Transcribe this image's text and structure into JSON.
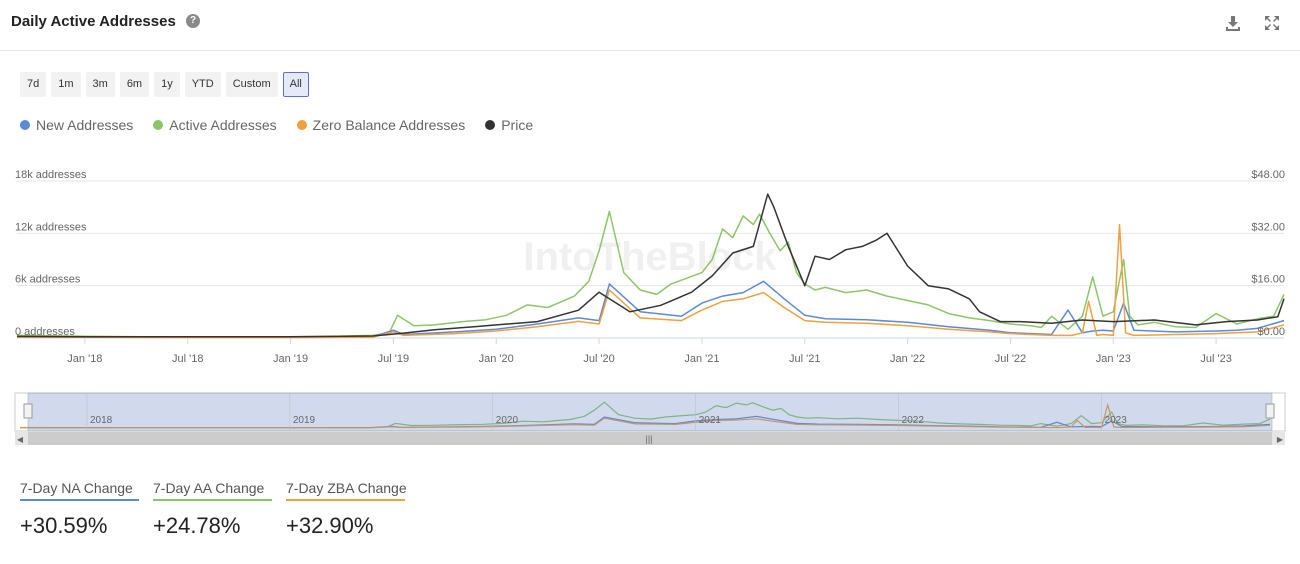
{
  "header": {
    "title": "Daily Active Addresses",
    "help_icon": "question-circle-icon",
    "download_icon": "download-icon",
    "expand_icon": "expand-icon"
  },
  "range_buttons": [
    {
      "label": "7d",
      "active": false
    },
    {
      "label": "1m",
      "active": false
    },
    {
      "label": "3m",
      "active": false
    },
    {
      "label": "6m",
      "active": false
    },
    {
      "label": "1y",
      "active": false
    },
    {
      "label": "YTD",
      "active": false
    },
    {
      "label": "Custom",
      "active": false
    },
    {
      "label": "All",
      "active": true
    }
  ],
  "legend": [
    {
      "label": "New Addresses",
      "color": "#5b8ad9"
    },
    {
      "label": "Active Addresses",
      "color": "#8bc766"
    },
    {
      "label": "Zero Balance Addresses",
      "color": "#f0a03c"
    },
    {
      "label": "Price",
      "color": "#333333"
    }
  ],
  "watermark": "IntoTheBlock",
  "chart_data": {
    "type": "line",
    "title": "",
    "left_axis": {
      "ticks": [
        "0 addresses",
        "6k addresses",
        "12k addresses",
        "18k addresses"
      ],
      "values": [
        0,
        6000,
        12000,
        18000
      ],
      "range": [
        0,
        18000
      ]
    },
    "right_axis": {
      "ticks": [
        "$0.00",
        "$16.00",
        "$32.00",
        "$48.00"
      ],
      "values": [
        0,
        16,
        32,
        48
      ],
      "range": [
        0,
        48
      ]
    },
    "x_range": [
      2017.67,
      2023.83
    ],
    "x_ticks": [
      {
        "label": "Jan '18",
        "value": 2018.0
      },
      {
        "label": "Jul '18",
        "value": 2018.5
      },
      {
        "label": "Jan '19",
        "value": 2019.0
      },
      {
        "label": "Jul '19",
        "value": 2019.5
      },
      {
        "label": "Jan '20",
        "value": 2020.0
      },
      {
        "label": "Jul '20",
        "value": 2020.5
      },
      {
        "label": "Jan '21",
        "value": 2021.0
      },
      {
        "label": "Jul '21",
        "value": 2021.5
      },
      {
        "label": "Jan '22",
        "value": 2022.0
      },
      {
        "label": "Jul '22",
        "value": 2022.5
      },
      {
        "label": "Jan '23",
        "value": 2023.0
      },
      {
        "label": "Jul '23",
        "value": 2023.5
      }
    ],
    "grid": true,
    "series": [
      {
        "name": "Active Addresses",
        "axis": "left",
        "color": "#8bc766",
        "x": [
          2017.67,
          2017.8,
          2018.0,
          2018.3,
          2018.6,
          2018.9,
          2019.2,
          2019.4,
          2019.48,
          2019.52,
          2019.6,
          2019.7,
          2019.85,
          2019.95,
          2020.05,
          2020.15,
          2020.25,
          2020.32,
          2020.38,
          2020.45,
          2020.5,
          2020.55,
          2020.62,
          2020.7,
          2020.78,
          2020.85,
          2020.92,
          2021.0,
          2021.05,
          2021.1,
          2021.15,
          2021.2,
          2021.25,
          2021.28,
          2021.33,
          2021.38,
          2021.42,
          2021.46,
          2021.5,
          2021.55,
          2021.6,
          2021.7,
          2021.8,
          2021.9,
          2022.0,
          2022.1,
          2022.2,
          2022.3,
          2022.4,
          2022.5,
          2022.6,
          2022.65,
          2022.7,
          2022.78,
          2022.85,
          2022.9,
          2022.95,
          2023.0,
          2023.05,
          2023.08,
          2023.12,
          2023.2,
          2023.3,
          2023.4,
          2023.5,
          2023.6,
          2023.7,
          2023.78,
          2023.83
        ],
        "y": [
          300,
          250,
          200,
          150,
          120,
          120,
          180,
          300,
          600,
          2600,
          1400,
          1500,
          1900,
          2100,
          2600,
          3800,
          3500,
          4200,
          4800,
          6500,
          10000,
          14500,
          7500,
          5500,
          5000,
          6200,
          6800,
          7500,
          9000,
          12500,
          11500,
          14000,
          13000,
          14200,
          12000,
          10000,
          11000,
          7500,
          6200,
          5500,
          5800,
          5200,
          5500,
          4800,
          4300,
          3800,
          2800,
          2300,
          2000,
          1600,
          1400,
          1200,
          2500,
          1000,
          2500,
          7000,
          2500,
          3000,
          9000,
          2500,
          1500,
          1800,
          1300,
          1200,
          2800,
          1600,
          2200,
          2500,
          5000
        ]
      },
      {
        "name": "New Addresses",
        "axis": "left",
        "color": "#5b8ad9",
        "x": [
          2017.67,
          2018.0,
          2018.5,
          2019.0,
          2019.4,
          2019.5,
          2019.55,
          2019.8,
          2020.0,
          2020.2,
          2020.4,
          2020.5,
          2020.55,
          2020.7,
          2020.9,
          2021.0,
          2021.1,
          2021.2,
          2021.3,
          2021.4,
          2021.5,
          2021.6,
          2021.8,
          2022.0,
          2022.2,
          2022.4,
          2022.5,
          2022.6,
          2022.7,
          2022.78,
          2022.85,
          2022.9,
          2022.95,
          2023.0,
          2023.05,
          2023.1,
          2023.3,
          2023.5,
          2023.6,
          2023.7,
          2023.83
        ],
        "y": [
          150,
          100,
          80,
          80,
          150,
          900,
          400,
          700,
          1000,
          1600,
          2300,
          2000,
          6200,
          3000,
          2500,
          4000,
          4800,
          5200,
          6500,
          4500,
          2600,
          2200,
          2100,
          1800,
          1300,
          900,
          600,
          500,
          400,
          3200,
          600,
          800,
          900,
          800,
          4000,
          900,
          700,
          800,
          900,
          1100,
          2000
        ]
      },
      {
        "name": "Zero Balance Addresses",
        "axis": "left",
        "color": "#f0a03c",
        "x": [
          2017.67,
          2018.0,
          2018.5,
          2019.0,
          2019.4,
          2019.5,
          2019.55,
          2019.8,
          2020.0,
          2020.2,
          2020.4,
          2020.5,
          2020.55,
          2020.7,
          2020.9,
          2021.0,
          2021.1,
          2021.2,
          2021.3,
          2021.4,
          2021.5,
          2021.6,
          2021.8,
          2022.0,
          2022.2,
          2022.4,
          2022.5,
          2022.6,
          2022.7,
          2022.8,
          2022.85,
          2022.88,
          2022.92,
          2022.95,
          2023.0,
          2023.03,
          2023.06,
          2023.1,
          2023.3,
          2023.5,
          2023.6,
          2023.7,
          2023.83
        ],
        "y": [
          100,
          80,
          60,
          60,
          100,
          700,
          300,
          500,
          800,
          1300,
          1900,
          1600,
          5500,
          2300,
          2000,
          3200,
          4200,
          4500,
          5200,
          3500,
          2000,
          1800,
          1700,
          1400,
          1000,
          700,
          500,
          400,
          300,
          300,
          600,
          4200,
          300,
          400,
          300,
          13000,
          600,
          300,
          400,
          500,
          600,
          700,
          1500
        ]
      },
      {
        "name": "Price",
        "axis": "right",
        "color": "#333333",
        "x": [
          2017.67,
          2018.0,
          2018.5,
          2019.0,
          2019.4,
          2019.55,
          2019.7,
          2019.9,
          2020.0,
          2020.2,
          2020.4,
          2020.5,
          2020.55,
          2020.65,
          2020.8,
          2020.95,
          2021.05,
          2021.15,
          2021.25,
          2021.32,
          2021.35,
          2021.42,
          2021.5,
          2021.55,
          2021.62,
          2021.7,
          2021.78,
          2021.85,
          2021.9,
          2022.0,
          2022.1,
          2022.2,
          2022.3,
          2022.35,
          2022.45,
          2022.55,
          2022.7,
          2022.85,
          2023.0,
          2023.2,
          2023.4,
          2023.55,
          2023.7,
          2023.8,
          2023.83
        ],
        "y": [
          0.5,
          0.4,
          0.4,
          0.4,
          0.6,
          1.5,
          2.5,
          3.5,
          4.0,
          5.0,
          8.5,
          14.0,
          12.0,
          8.0,
          10.0,
          14.0,
          19.0,
          26.0,
          28.0,
          44.0,
          40.0,
          28.0,
          16.0,
          25.0,
          24.0,
          27.0,
          28.0,
          30.0,
          32.0,
          22.0,
          16.0,
          15.0,
          12.0,
          8.0,
          5.0,
          5.0,
          4.5,
          5.5,
          5.0,
          5.5,
          4.0,
          5.0,
          5.5,
          6.5,
          12.0
        ]
      }
    ]
  },
  "navigator": {
    "years": [
      "2018",
      "2019",
      "2020",
      "2021",
      "2022",
      "2023"
    ]
  },
  "stats": [
    {
      "label": "7-Day NA Change",
      "value": "+30.59%",
      "color": "#5b8ad9"
    },
    {
      "label": "7-Day AA Change",
      "value": "+24.78%",
      "color": "#8bc766"
    },
    {
      "label": "7-Day ZBA Change",
      "value": "+32.90%",
      "color": "#f0a03c"
    }
  ]
}
